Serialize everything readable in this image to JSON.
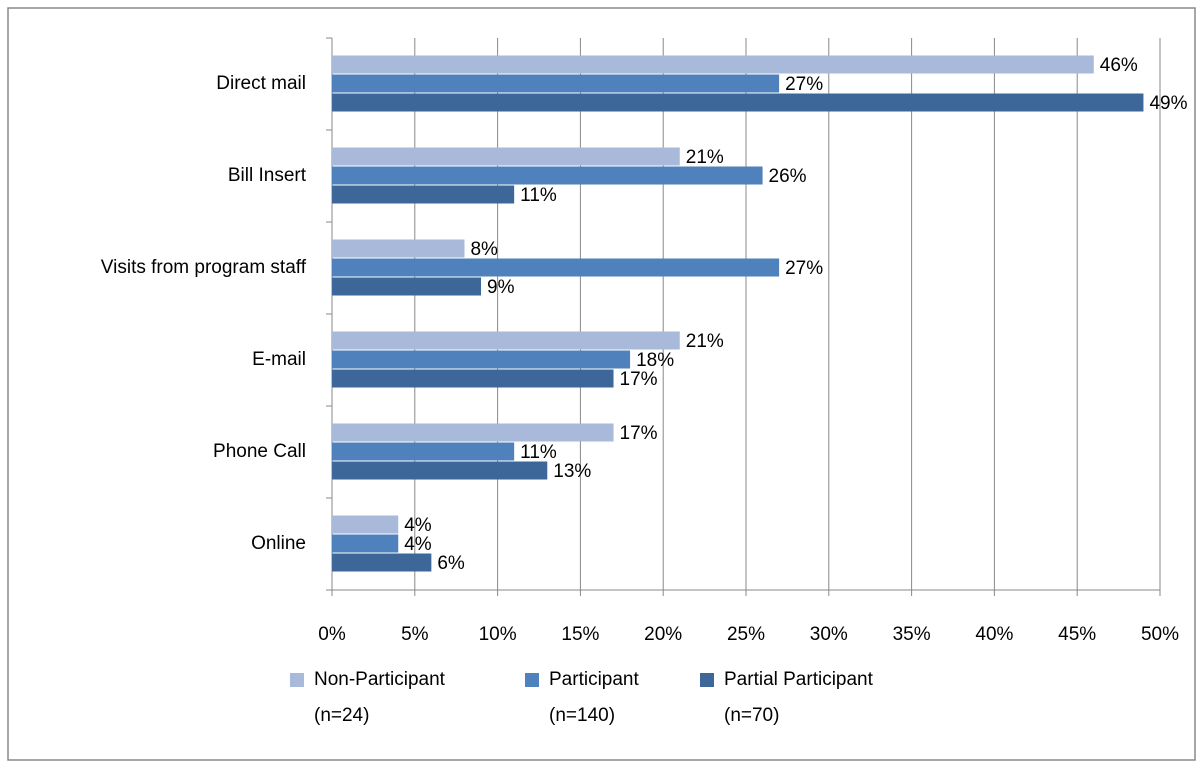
{
  "chart_data": {
    "type": "hbar",
    "categories": [
      "Direct mail",
      "Bill Insert",
      "Visits from program staff",
      "E-mail",
      "Phone Call",
      "Online"
    ],
    "series": [
      {
        "name": "Non-Participant\n(n=24)",
        "color": "#a9b9da",
        "values": [
          46,
          21,
          8,
          21,
          17,
          4
        ],
        "value_labels": [
          "46%",
          "21%",
          "8%",
          "21%",
          "17%",
          "4%"
        ]
      },
      {
        "name": "Participant\n(n=140)",
        "color": "#4f81bd",
        "values": [
          27,
          26,
          27,
          18,
          11,
          4
        ],
        "value_labels": [
          "27%",
          "26%",
          "27%",
          "18%",
          "11%",
          "4%"
        ]
      },
      {
        "name": "Partial Participant\n(n=70)",
        "color": "#3d6699",
        "values": [
          49,
          11,
          9,
          17,
          13,
          6
        ],
        "value_labels": [
          "49%",
          "11%",
          "9%",
          "17%",
          "13%",
          "6%"
        ]
      }
    ],
    "xlim": [
      0,
      50
    ],
    "xticks": [
      {
        "value": 0,
        "label": "0%"
      },
      {
        "value": 5,
        "label": "5%"
      },
      {
        "value": 10,
        "label": "10%"
      },
      {
        "value": 15,
        "label": "15%"
      },
      {
        "value": 20,
        "label": "20%"
      },
      {
        "value": 25,
        "label": "25%"
      },
      {
        "value": 30,
        "label": "30%"
      },
      {
        "value": 35,
        "label": "35%"
      },
      {
        "value": 40,
        "label": "40%"
      },
      {
        "value": 45,
        "label": "45%"
      },
      {
        "value": 50,
        "label": "50%"
      }
    ],
    "grid": true
  }
}
